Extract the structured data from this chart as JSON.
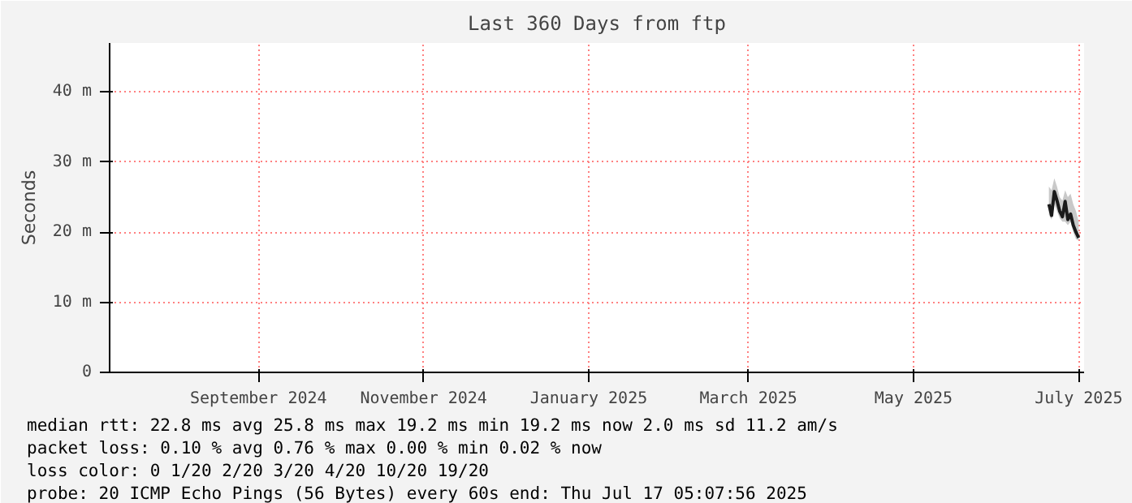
{
  "chart_data": {
    "type": "line",
    "title": "Last 360 Days from ftp",
    "ylabel": "Seconds",
    "x": [
      "2025-07-04",
      "2025-07-05",
      "2025-07-06",
      "2025-07-07",
      "2025-07-08",
      "2025-07-09",
      "2025-07-10",
      "2025-07-11",
      "2025-07-12",
      "2025-07-13",
      "2025-07-14",
      "2025-07-15"
    ],
    "series": [
      {
        "color": "#1a1a1a",
        "values": [
          24.0,
          22.4,
          25.8,
          24.5,
          23.0,
          22.2,
          24.4,
          21.8,
          22.6,
          21.0,
          20.0,
          19.2
        ],
        "lower": [
          22.5,
          21.8,
          24.0,
          23.0,
          22.0,
          21.5,
          21.5,
          21.0,
          21.5,
          20.0,
          19.0,
          18.8
        ],
        "upper": [
          26.5,
          26.0,
          27.7,
          26.5,
          25.0,
          24.5,
          26.0,
          25.0,
          25.5,
          24.0,
          23.0,
          21.5
        ]
      }
    ],
    "xlim": [
      "2024-07-22",
      "2025-07-17"
    ],
    "xticks": [
      {
        "value": "2024-09-15",
        "label": "September 2024"
      },
      {
        "value": "2024-11-15",
        "label": "November 2024"
      },
      {
        "value": "2025-01-15",
        "label": "January 2025"
      },
      {
        "value": "2025-03-15",
        "label": "March 2025"
      },
      {
        "value": "2025-05-15",
        "label": "May 2025"
      },
      {
        "value": "2025-07-15",
        "label": "July 2025"
      }
    ],
    "ylim": [
      0,
      47
    ],
    "yticks": [
      {
        "value": 0,
        "label": "0"
      },
      {
        "value": 10,
        "label": "10 m"
      },
      {
        "value": 20,
        "label": "20 m"
      },
      {
        "value": 30,
        "label": "30 m"
      },
      {
        "value": 40,
        "label": "40 m"
      }
    ],
    "grid": true,
    "marker": "none",
    "line_style": "solid",
    "annotations": [
      "median rtt:  22.8 ms avg  25.8 ms max  19.2 ms min  19.2 ms now  2.0 ms sd  11.2   am/s",
      "packet loss: 0.10 % avg  0.76 % max  0.00 % min  0.02 % now",
      "loss color:  0  1/20  2/20  3/20  4/20  10/20  19/20",
      "probe:       20 ICMP Echo Pings (56 Bytes) every 60s                end: Thu Jul 17 05:07:56 2025"
    ]
  }
}
